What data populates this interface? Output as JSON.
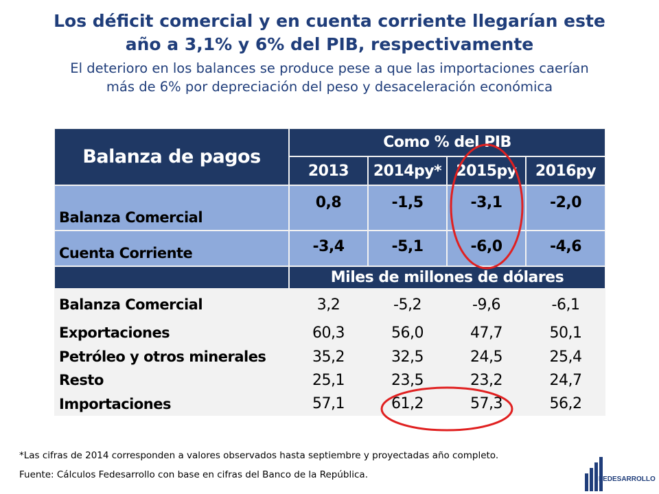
{
  "title_line1": "Los déficit comercial y en cuenta corriente llegarían este",
  "title_line2": "año a 3,1% y 6% del PIB, respectivamente",
  "subtitle_line1": "El deterioro en los balances se produce pese a que las importaciones caerían",
  "subtitle_line2": "más de 6% por depreciación del peso y desaceleración económica",
  "table": {
    "main_header": "Balanza de pagos",
    "group1_header": "Como % del PIB",
    "years": [
      "2013",
      "2014py*",
      "2015py",
      "2016py"
    ],
    "pct_rows": [
      {
        "label": "Balanza Comercial",
        "values": [
          "0,8",
          "-1,5",
          "-3,1",
          "-2,0"
        ]
      },
      {
        "label": "Cuenta Corriente",
        "values": [
          "-3,4",
          "-5,1",
          "-6,0",
          "-4,6"
        ]
      }
    ],
    "group2_header": "Miles de millones de dólares",
    "usd_rows": [
      {
        "label": "Balanza Comercial",
        "values": [
          "3,2",
          "-5,2",
          "-9,6",
          "-6,1"
        ]
      },
      {
        "label": "Exportaciones",
        "values": [
          "60,3",
          "56,0",
          "47,7",
          "50,1"
        ]
      },
      {
        "label": "Petróleo y otros minerales",
        "values": [
          "35,2",
          "32,5",
          "24,5",
          "25,4"
        ]
      },
      {
        "label": "Resto",
        "values": [
          "25,1",
          "23,5",
          "23,2",
          "24,7"
        ]
      },
      {
        "label": "Importaciones",
        "values": [
          "57,1",
          "61,2",
          "57,3",
          "56,2"
        ]
      }
    ]
  },
  "footnote": "*Las cifras de 2014 corresponden a valores observados hasta septiembre y proyectadas año completo.",
  "source": "Fuente: Cálculos Fedesarrollo con base en cifras del Banco de la República.",
  "logo": {
    "name": "FEDESARROLLO",
    "icon": "building-bars-icon",
    "color": "#1f3d7a"
  },
  "colors": {
    "header": "#1f3864",
    "highlight_row": "#8eaadb",
    "annotation": "#e02020"
  }
}
